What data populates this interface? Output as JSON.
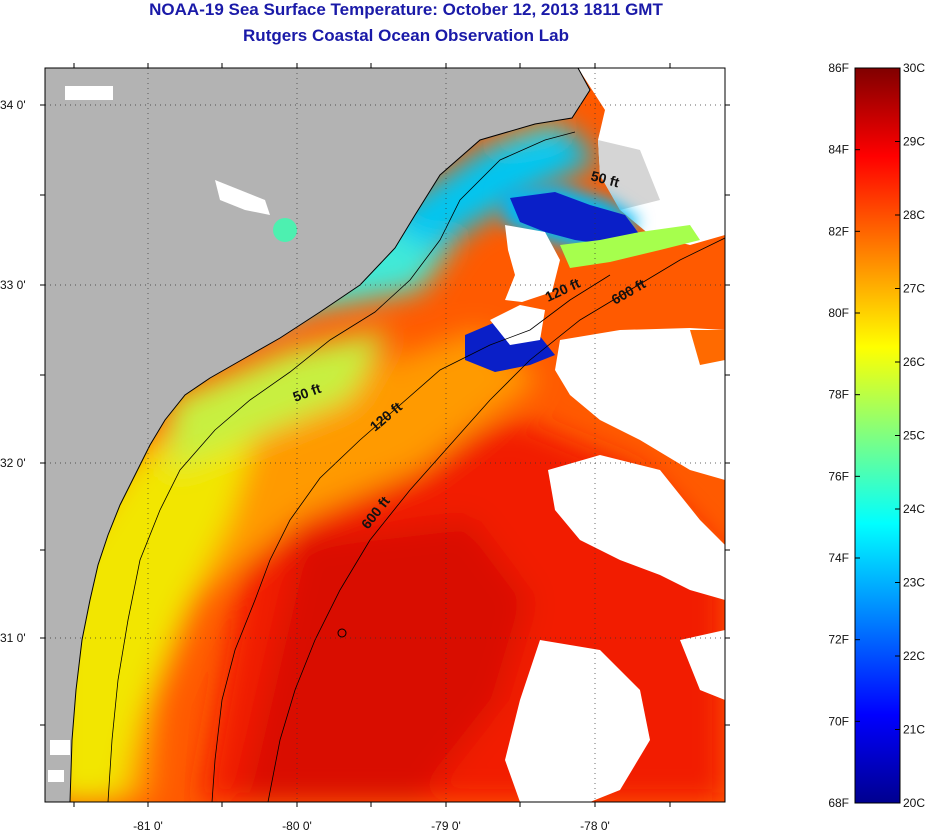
{
  "title": {
    "line1": "NOAA-19 Sea Surface Temperature:  October 12, 2013 1811 GMT",
    "line2": "Rutgers Coastal Ocean Observation Lab"
  },
  "map": {
    "x_ticks": [
      "-81 0'",
      "-80 0'",
      "-79 0'",
      "-78 0'"
    ],
    "y_ticks": [
      "34 0'",
      "33 0'",
      "32 0'",
      "31 0'"
    ],
    "contours": [
      {
        "label": "50 ft"
      },
      {
        "label": "50 ft"
      },
      {
        "label": "120 ft"
      },
      {
        "label": "120 ft"
      },
      {
        "label": "600 ft"
      },
      {
        "label": "600 ft"
      }
    ],
    "land_color": "#b3b3b3",
    "cloud_color": "#ffffff"
  },
  "colorbar": {
    "fahrenheit": [
      "86F",
      "84F",
      "82F",
      "80F",
      "78F",
      "76F",
      "74F",
      "72F",
      "70F",
      "68F"
    ],
    "celsius": [
      "30C",
      "29C",
      "28C",
      "27C",
      "26C",
      "25C",
      "24C",
      "23C",
      "22C",
      "21C",
      "20C"
    ],
    "range_c": [
      20,
      30
    ],
    "colors_low_to_high": [
      "#00008f",
      "#0000ff",
      "#0080ff",
      "#00ffff",
      "#80ff80",
      "#ffff00",
      "#ff8000",
      "#ff0000",
      "#800000"
    ]
  }
}
